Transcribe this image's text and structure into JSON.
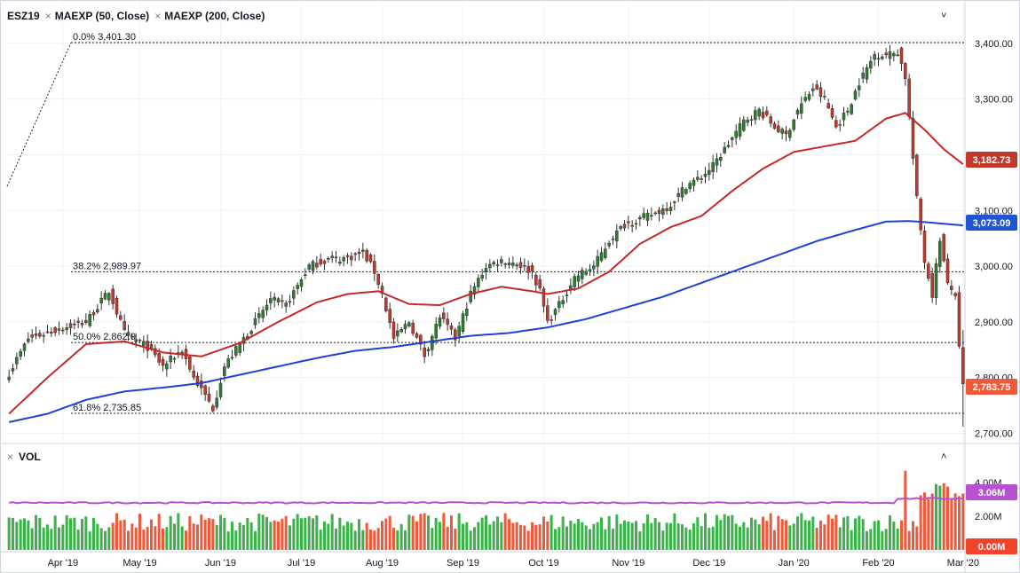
{
  "legend": {
    "symbol": "ESZ19",
    "ma50_label": "MAEXP (50, Close)",
    "ma200_label": "MAEXP (200, Close)",
    "vol_label": "VOL",
    "remove_icon": "×",
    "collapse_icon": "˅",
    "expand_icon": "˄"
  },
  "badges": {
    "ma50": "3,182.73",
    "ma200": "3,073.09",
    "last": "2,783.75",
    "vol": "3.06M",
    "vol_zero": "0.00M"
  },
  "colors": {
    "up": "#26a69a",
    "up_candle": "#2e7d32",
    "down": "#c0392b",
    "ma50": "#c62828",
    "ma200": "#1f3fd6",
    "vol_ma": "#b94fd1",
    "vol_up": "#3cb34a",
    "vol_down": "#ef5a3c",
    "badge_ma50": "#c0392b",
    "badge_ma200": "#2155d6",
    "badge_last": "#f05a3a",
    "badge_vol": "#b94fd1",
    "badge_zero": "#f0432a"
  },
  "chart_data": {
    "type": "candlestick",
    "title": "ESZ19",
    "price_axis": {
      "ticks": [
        2700,
        2800,
        2900,
        3000,
        3100,
        3200,
        3300,
        3400
      ],
      "tick_labels": [
        "2,700.00",
        "2,800.00",
        "2,900.00",
        "3,000.00",
        "3,100.00",
        "3,200.00",
        "3,300.00",
        "3,400.00"
      ],
      "ylim": [
        2688,
        3430
      ]
    },
    "volume_axis": {
      "ticks": [
        2,
        4
      ],
      "tick_labels": [
        "2.00M",
        "4.00M"
      ],
      "ylim": [
        0,
        5.0
      ]
    },
    "time_axis": {
      "labels": [
        "Apr '19",
        "May '19",
        "Jun '19",
        "Jul '19",
        "Aug '19",
        "Sep '19",
        "Oct '19",
        "Nov '19",
        "Dec '19",
        "Jan '20",
        "Feb '20",
        "Mar '20"
      ],
      "label_positions": [
        14,
        34,
        55,
        76,
        97,
        118,
        139,
        161,
        182,
        204,
        226,
        248
      ]
    },
    "fibonacci": [
      {
        "label": "0.0% 3,401.30",
        "value": 3401.3
      },
      {
        "label": "38.2% 2,989.97",
        "value": 2989.97
      },
      {
        "label": "50.0% 2,862.9",
        "value": 2862.9
      },
      {
        "label": "61.8% 2,735.85",
        "value": 2735.85
      }
    ],
    "close_anchors": [
      [
        0,
        2808
      ],
      [
        5,
        2870
      ],
      [
        12,
        2885
      ],
      [
        20,
        2900
      ],
      [
        26,
        2955
      ],
      [
        30,
        2880
      ],
      [
        36,
        2855
      ],
      [
        40,
        2820
      ],
      [
        45,
        2850
      ],
      [
        48,
        2800
      ],
      [
        53,
        2745
      ],
      [
        56,
        2820
      ],
      [
        62,
        2880
      ],
      [
        68,
        2940
      ],
      [
        72,
        2930
      ],
      [
        78,
        3000
      ],
      [
        82,
        3010
      ],
      [
        88,
        3015
      ],
      [
        92,
        3025
      ],
      [
        95,
        2990
      ],
      [
        97,
        2950
      ],
      [
        100,
        2870
      ],
      [
        104,
        2900
      ],
      [
        108,
        2840
      ],
      [
        112,
        2910
      ],
      [
        116,
        2870
      ],
      [
        120,
        2950
      ],
      [
        124,
        3000
      ],
      [
        128,
        3010
      ],
      [
        132,
        3005
      ],
      [
        136,
        2990
      ],
      [
        138,
        2955
      ],
      [
        140,
        2900
      ],
      [
        143,
        2930
      ],
      [
        147,
        2980
      ],
      [
        152,
        3000
      ],
      [
        156,
        3045
      ],
      [
        160,
        3075
      ],
      [
        164,
        3085
      ],
      [
        168,
        3095
      ],
      [
        172,
        3110
      ],
      [
        176,
        3145
      ],
      [
        180,
        3160
      ],
      [
        183,
        3180
      ],
      [
        188,
        3230
      ],
      [
        191,
        3260
      ],
      [
        195,
        3280
      ],
      [
        199,
        3250
      ],
      [
        202,
        3235
      ],
      [
        205,
        3280
      ],
      [
        209,
        3320
      ],
      [
        212,
        3300
      ],
      [
        215,
        3250
      ],
      [
        218,
        3280
      ],
      [
        221,
        3330
      ],
      [
        225,
        3380
      ],
      [
        229,
        3380
      ],
      [
        231,
        3385
      ],
      [
        233,
        3340
      ],
      [
        236,
        3120
      ],
      [
        238,
        3010
      ],
      [
        240,
        2950
      ],
      [
        242,
        3050
      ],
      [
        244,
        2965
      ],
      [
        246,
        2950
      ],
      [
        247,
        2850
      ],
      [
        248,
        2783.75
      ]
    ],
    "ma50_anchors": [
      [
        0,
        2735
      ],
      [
        10,
        2800
      ],
      [
        20,
        2860
      ],
      [
        30,
        2865
      ],
      [
        40,
        2845
      ],
      [
        50,
        2838
      ],
      [
        60,
        2862
      ],
      [
        70,
        2900
      ],
      [
        80,
        2935
      ],
      [
        88,
        2950
      ],
      [
        96,
        2955
      ],
      [
        104,
        2932
      ],
      [
        112,
        2930
      ],
      [
        120,
        2950
      ],
      [
        128,
        2963
      ],
      [
        136,
        2955
      ],
      [
        140,
        2950
      ],
      [
        148,
        2960
      ],
      [
        156,
        2990
      ],
      [
        164,
        3040
      ],
      [
        172,
        3070
      ],
      [
        180,
        3090
      ],
      [
        188,
        3135
      ],
      [
        196,
        3175
      ],
      [
        204,
        3205
      ],
      [
        212,
        3215
      ],
      [
        220,
        3225
      ],
      [
        228,
        3265
      ],
      [
        233,
        3275
      ],
      [
        238,
        3245
      ],
      [
        243,
        3210
      ],
      [
        248,
        3183
      ]
    ],
    "ma200_anchors": [
      [
        0,
        2720
      ],
      [
        10,
        2735
      ],
      [
        20,
        2760
      ],
      [
        30,
        2775
      ],
      [
        40,
        2782
      ],
      [
        50,
        2790
      ],
      [
        60,
        2805
      ],
      [
        70,
        2820
      ],
      [
        80,
        2835
      ],
      [
        90,
        2848
      ],
      [
        100,
        2855
      ],
      [
        110,
        2865
      ],
      [
        120,
        2875
      ],
      [
        130,
        2880
      ],
      [
        140,
        2890
      ],
      [
        150,
        2905
      ],
      [
        160,
        2925
      ],
      [
        170,
        2945
      ],
      [
        180,
        2970
      ],
      [
        190,
        2995
      ],
      [
        200,
        3020
      ],
      [
        210,
        3045
      ],
      [
        220,
        3065
      ],
      [
        228,
        3080
      ],
      [
        234,
        3081
      ],
      [
        240,
        3078
      ],
      [
        248,
        3073
      ]
    ],
    "volume_ma": 2.8
  }
}
